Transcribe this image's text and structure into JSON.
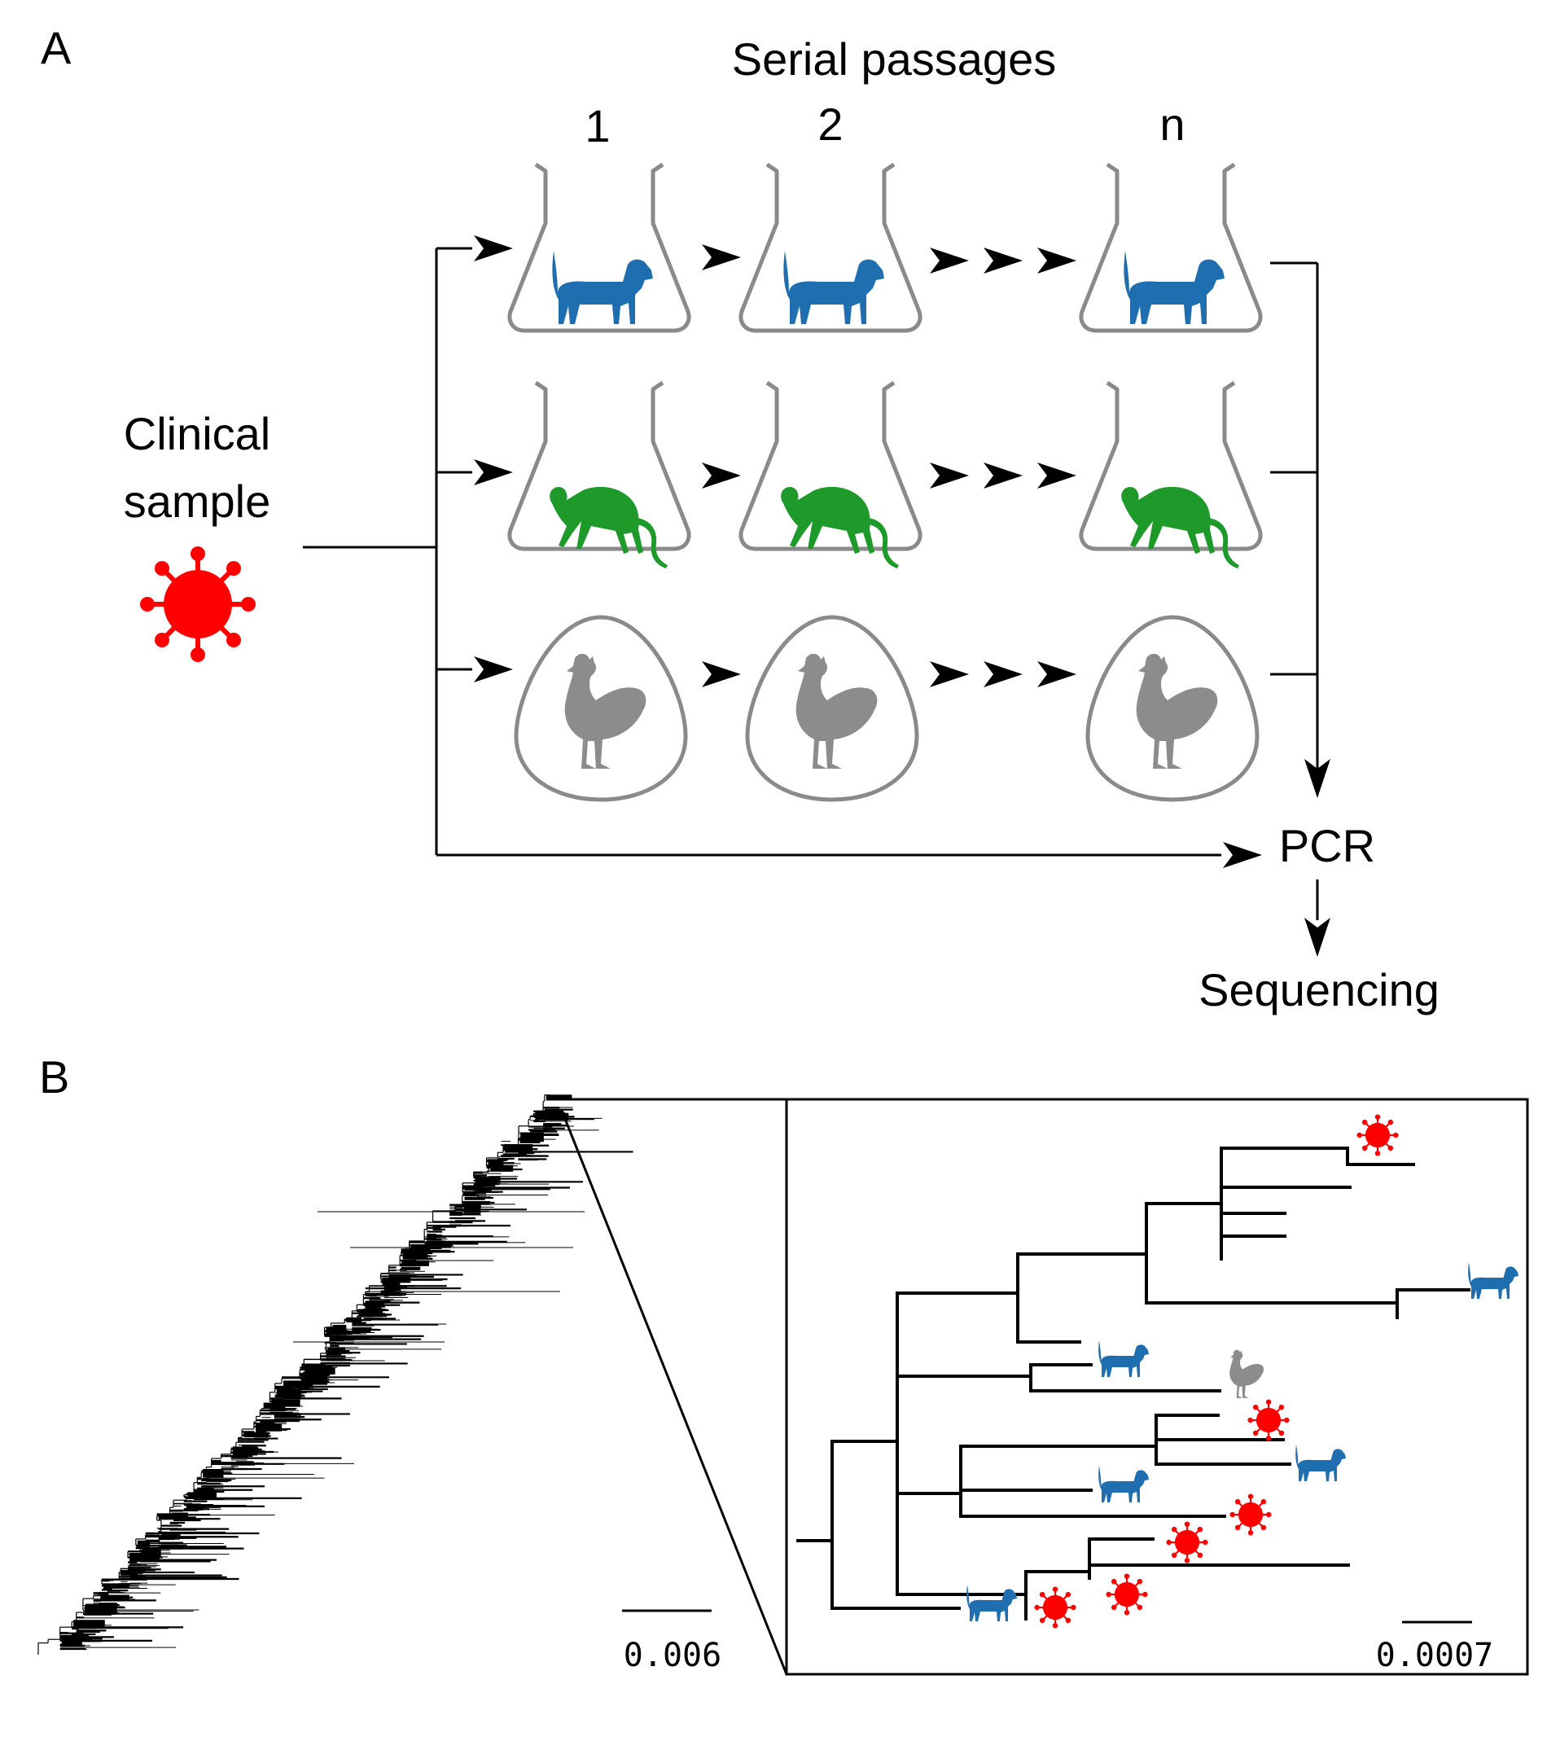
{
  "panel_a": {
    "label": "A",
    "title": "Serial passages",
    "passages": [
      "1",
      "2",
      "n"
    ],
    "source_line1": "Clinical",
    "source_line2": "sample",
    "pcr": "PCR",
    "sequencing": "Sequencing",
    "rows": [
      {
        "host": "dog",
        "vessel": "flask",
        "color": "#1f6fb0"
      },
      {
        "host": "monkey",
        "vessel": "flask",
        "color": "#1d9a2a"
      },
      {
        "host": "chicken",
        "vessel": "egg",
        "color": "#8c8c8c"
      }
    ]
  },
  "panel_b": {
    "label": "B",
    "scale_left": "0.006",
    "scale_right": "0.0007"
  },
  "colors": {
    "virus": "#ff0000",
    "dog": "#1f6fb0",
    "monkey": "#1d9a2a",
    "chicken": "#8c8c8c",
    "vessel": "#8a8a8a"
  }
}
